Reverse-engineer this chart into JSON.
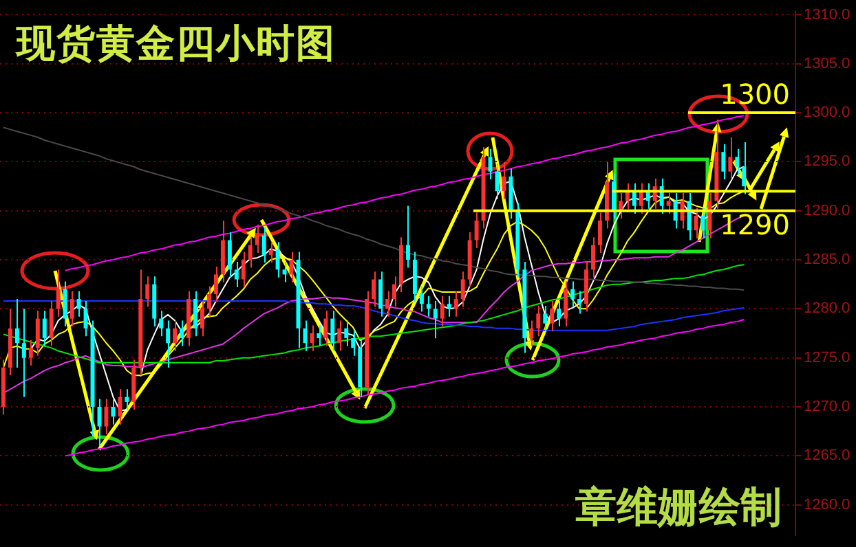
{
  "chart_data": {
    "type": "candlestick",
    "title": "现货黄金四小时图",
    "annotations": [
      "章维姗绘制"
    ],
    "categories": [
      null,
      null,
      null,
      null,
      null,
      null,
      null,
      null,
      null,
      null,
      null,
      null,
      null,
      null,
      null,
      null,
      null,
      null,
      null,
      null,
      null,
      null,
      null,
      null,
      null,
      null,
      null,
      null,
      null,
      null,
      null,
      null,
      null,
      null,
      null,
      null,
      null,
      null,
      null,
      null,
      null,
      null,
      null,
      null,
      null,
      null,
      null,
      null,
      null,
      null,
      null,
      null,
      null,
      null,
      null,
      null,
      null,
      null,
      null,
      null,
      null,
      null,
      null,
      null,
      null,
      null,
      null,
      null,
      null,
      null,
      null,
      null,
      null,
      null,
      null,
      null,
      null,
      null,
      null,
      null,
      null,
      null,
      null,
      null,
      null,
      null,
      null,
      null,
      null,
      null,
      null,
      null,
      null,
      null,
      null,
      null,
      null,
      null,
      null,
      null,
      null,
      null,
      null,
      null,
      null,
      null,
      null,
      null,
      null
    ],
    "ohlc": [
      [
        1270,
        1274.8,
        1269.2,
        1274
      ],
      [
        1274,
        1280,
        1273.2,
        1278
      ],
      [
        1278,
        1281,
        1274,
        1276.5
      ],
      [
        1276.5,
        1280,
        1271,
        1275
      ],
      [
        1275,
        1276.8,
        1274.2,
        1276
      ],
      [
        1276,
        1279.8,
        1275.2,
        1279
      ],
      [
        1279,
        1279.8,
        1276.2,
        1277
      ],
      [
        1277,
        1280.8,
        1276.2,
        1280
      ],
      [
        1280,
        1284,
        1279.2,
        1282
      ],
      [
        1282,
        1282.8,
        1278.2,
        1279
      ],
      [
        1279,
        1281.8,
        1278.2,
        1281
      ],
      [
        1281,
        1281.8,
        1279.2,
        1280
      ],
      [
        1280,
        1280.8,
        1277.2,
        1278
      ],
      [
        1278,
        1278.8,
        1267,
        1270
      ],
      [
        1270,
        1270.8,
        1266,
        1268
      ],
      [
        1268,
        1270.8,
        1267.2,
        1270
      ],
      [
        1270,
        1270.8,
        1268.2,
        1269
      ],
      [
        1269,
        1271.8,
        1268.2,
        1271
      ],
      [
        1271,
        1271.8,
        1269.7,
        1270.5
      ],
      [
        1270.5,
        1274.8,
        1269.7,
        1274
      ],
      [
        1274,
        1284,
        1273.2,
        1281
      ],
      [
        1281,
        1283.3,
        1280.2,
        1282.5
      ],
      [
        1282.5,
        1283.3,
        1278.2,
        1279
      ],
      [
        1279,
        1279.8,
        1277.2,
        1278
      ],
      [
        1278,
        1278.8,
        1274,
        1276.5
      ],
      [
        1276.5,
        1278.8,
        1275.7,
        1278
      ],
      [
        1278,
        1278.8,
        1276.2,
        1277
      ],
      [
        1277,
        1281.8,
        1276.2,
        1281
      ],
      [
        1281,
        1281.8,
        1277.2,
        1278
      ],
      [
        1278,
        1280.8,
        1277.2,
        1280
      ],
      [
        1280,
        1282.3,
        1279.2,
        1281.5
      ],
      [
        1281.5,
        1284.3,
        1280.7,
        1283.5
      ],
      [
        1283.5,
        1289,
        1282.7,
        1287
      ],
      [
        1287,
        1287.8,
        1283.2,
        1284
      ],
      [
        1284,
        1284.8,
        1282.2,
        1283
      ],
      [
        1283,
        1285.8,
        1282.2,
        1285
      ],
      [
        1285,
        1287.3,
        1284.2,
        1286.5
      ],
      [
        1286.5,
        1288.6,
        1285.7,
        1287.5
      ],
      [
        1287.5,
        1288.3,
        1284.7,
        1285.5
      ],
      [
        1285.5,
        1286.8,
        1284.7,
        1286
      ],
      [
        1286,
        1286.8,
        1283.2,
        1284
      ],
      [
        1284,
        1284.8,
        1282.7,
        1283.5
      ],
      [
        1283.5,
        1285.8,
        1282.7,
        1285
      ],
      [
        1285,
        1285.8,
        1276,
        1278
      ],
      [
        1278,
        1278.8,
        1275.7,
        1276.5
      ],
      [
        1276.5,
        1278.3,
        1275.7,
        1277.5
      ],
      [
        1277.5,
        1278.3,
        1276.2,
        1277
      ],
      [
        1277,
        1279.8,
        1276.2,
        1279
      ],
      [
        1279,
        1279.8,
        1275.7,
        1276.5
      ],
      [
        1276.5,
        1278.8,
        1275.7,
        1278
      ],
      [
        1278,
        1278.8,
        1276.2,
        1277
      ],
      [
        1277,
        1277.8,
        1275.2,
        1276
      ],
      [
        1276,
        1276.8,
        1271,
        1272
      ],
      [
        1272,
        1281.8,
        1271.2,
        1281
      ],
      [
        1281,
        1283.8,
        1280.2,
        1283
      ],
      [
        1283,
        1283.8,
        1279.2,
        1280
      ],
      [
        1280,
        1281.8,
        1279.2,
        1281
      ],
      [
        1281,
        1283.3,
        1280.2,
        1282.5
      ],
      [
        1282.5,
        1287.3,
        1281.7,
        1286.5
      ],
      [
        1286.5,
        1290.5,
        1284.2,
        1285
      ],
      [
        1285,
        1285.8,
        1280.7,
        1281.5
      ],
      [
        1281.5,
        1282.3,
        1279.7,
        1280.5
      ],
      [
        1280.5,
        1281.3,
        1279.2,
        1280
      ],
      [
        1280,
        1280.8,
        1277,
        1279
      ],
      [
        1279,
        1281.3,
        1278.2,
        1280.5
      ],
      [
        1280.5,
        1281.3,
        1279.2,
        1280
      ],
      [
        1280,
        1281.8,
        1279.2,
        1281
      ],
      [
        1281,
        1283.8,
        1280.2,
        1283
      ],
      [
        1283,
        1287.8,
        1282.2,
        1287
      ],
      [
        1287,
        1289.8,
        1286.2,
        1289
      ],
      [
        1289,
        1296.5,
        1288.2,
        1295.5
      ],
      [
        1295.5,
        1296.3,
        1293.2,
        1294
      ],
      [
        1294,
        1294.8,
        1291.2,
        1292
      ],
      [
        1292,
        1295,
        1291.2,
        1293.5
      ],
      [
        1293.5,
        1294.3,
        1289.2,
        1290
      ],
      [
        1290,
        1290.8,
        1283.2,
        1284
      ],
      [
        1284,
        1284.8,
        1275.5,
        1277
      ],
      [
        1277,
        1278.8,
        1276.2,
        1278
      ],
      [
        1278,
        1280.3,
        1277.2,
        1279.5
      ],
      [
        1279.5,
        1280.3,
        1277.7,
        1278.5
      ],
      [
        1278.5,
        1280.8,
        1277.7,
        1280
      ],
      [
        1280,
        1280.8,
        1278.2,
        1279
      ],
      [
        1279,
        1282.8,
        1278.2,
        1282
      ],
      [
        1282,
        1282.8,
        1280.2,
        1281
      ],
      [
        1281,
        1281.8,
        1279.5,
        1280.5
      ],
      [
        1280.5,
        1284.8,
        1279.7,
        1284
      ],
      [
        1284,
        1287.3,
        1283.2,
        1286.5
      ],
      [
        1286.5,
        1289.8,
        1285.7,
        1289
      ],
      [
        1289,
        1295,
        1288.2,
        1293
      ],
      [
        1293,
        1293.8,
        1289.2,
        1290
      ],
      [
        1290,
        1291.8,
        1289.2,
        1291
      ],
      [
        1291,
        1292.8,
        1290.2,
        1292
      ],
      [
        1292,
        1292.8,
        1289.7,
        1290.5
      ],
      [
        1290.5,
        1292.8,
        1289.7,
        1292
      ],
      [
        1292,
        1292.8,
        1290.2,
        1291
      ],
      [
        1291,
        1293.3,
        1290.2,
        1292.5
      ],
      [
        1292.5,
        1293.3,
        1289.7,
        1290.5
      ],
      [
        1290.5,
        1291.8,
        1289.7,
        1291
      ],
      [
        1291,
        1291.8,
        1288.2,
        1289
      ],
      [
        1289,
        1291.8,
        1288.2,
        1291
      ],
      [
        1291,
        1291.8,
        1287,
        1288
      ],
      [
        1288,
        1290.3,
        1287.2,
        1289.5
      ],
      [
        1289.5,
        1290.3,
        1287.2,
        1288
      ],
      [
        1288,
        1291.8,
        1287.2,
        1291
      ],
      [
        1291,
        1299.3,
        1290.2,
        1296
      ],
      [
        1296,
        1296.8,
        1293.2,
        1294
      ],
      [
        1294,
        1297.5,
        1293.2,
        1295.5
      ],
      [
        1295.5,
        1296.3,
        1293.7,
        1294.5
      ],
      [
        1294.5,
        1297,
        1291.7,
        1292.5
      ]
    ],
    "colors": [
      "#ff3232",
      "#ff3232",
      "#00ffff",
      "#00ffff",
      "#ff3232",
      "#ff3232",
      "#00ffff",
      "#ff3232",
      "#ff3232",
      "#00ffff",
      "#ff3232",
      "#00ffff",
      "#00ffff",
      "#00ffff",
      "#00ffff",
      "#ff3232",
      "#00ffff",
      "#ff3232",
      "#00ffff",
      "#ff3232",
      "#ff3232",
      "#ff3232",
      "#00ffff",
      "#00ffff",
      "#00ffff",
      "#ff3232",
      "#00ffff",
      "#ff3232",
      "#00ffff",
      "#ff3232",
      "#ff3232",
      "#ff3232",
      "#ff3232",
      "#00ffff",
      "#00ffff",
      "#ff3232",
      "#ff3232",
      "#ff3232",
      "#00ffff",
      "#ff3232",
      "#00ffff",
      "#00ffff",
      "#ff3232",
      "#00ffff",
      "#00ffff",
      "#ff3232",
      "#00ffff",
      "#ff3232",
      "#00ffff",
      "#ff3232",
      "#00ffff",
      "#00ffff",
      "#00ffff",
      "#ff3232",
      "#ff3232",
      "#00ffff",
      "#ff3232",
      "#ff3232",
      "#ff3232",
      "#00ffff",
      "#00ffff",
      "#00ffff",
      "#00ffff",
      "#00ffff",
      "#ff3232",
      "#00ffff",
      "#ff3232",
      "#ff3232",
      "#ff3232",
      "#ff3232",
      "#ff3232",
      "#00ffff",
      "#00ffff",
      "#ff3232",
      "#00ffff",
      "#00ffff",
      "#00ffff",
      "#ff3232",
      "#ff3232",
      "#00ffff",
      "#ff3232",
      "#00ffff",
      "#ff3232",
      "#00ffff",
      "#00ffff",
      "#ff3232",
      "#ff3232",
      "#ff3232",
      "#ff3232",
      "#00ffff",
      "#ff3232",
      "#ff3232",
      "#00ffff",
      "#ff3232",
      "#00ffff",
      "#ff3232",
      "#00ffff",
      "#ff3232",
      "#00ffff",
      "#ff3232",
      "#00ffff",
      "#ff3232",
      "#00ffff",
      "#ff3232",
      "#ff3232",
      "#00ffff",
      "#ff3232",
      "#00ffff",
      "#00ffff"
    ],
    "series": [
      {
        "type": "line",
        "color": "#4a4a4a",
        "values": [
          1298.5,
          1298.3,
          1298.1,
          1297.9,
          1297.7,
          1297.5,
          1297.2,
          1297,
          1296.8,
          1296.6,
          1296.4,
          1296.2,
          1296,
          1295.8,
          1295.6,
          1295.3,
          1295.1,
          1294.9,
          1294.7,
          1294.5,
          1294.2,
          1294,
          1293.8,
          1293.6,
          1293.4,
          1293.2,
          1293,
          1292.8,
          1292.6,
          1292.4,
          1292.2,
          1292,
          1291.8,
          1291.6,
          1291.4,
          1291.2,
          1291,
          1290.8,
          1290.6,
          1290.4,
          1290.2,
          1290,
          1289.7,
          1289.5,
          1289.3,
          1289,
          1288.8,
          1288.5,
          1288.3,
          1288.1,
          1287.8,
          1287.6,
          1287.4,
          1287.1,
          1286.9,
          1286.6,
          1286.4,
          1286.2,
          1285.9,
          1285.7,
          1285.5,
          1285.4,
          1285.2,
          1285.1,
          1284.9,
          1284.8,
          1284.6,
          1284.5,
          1284.4,
          1284.2,
          1284.1,
          1283.9,
          1283.8,
          1283.6,
          1283.5,
          1283.5,
          1283.4,
          1283.4,
          1283.3,
          1283.3,
          1283.2,
          1283.2,
          1283.1,
          1283.1,
          1283,
          1283,
          1283,
          1282.9,
          1282.9,
          1282.8,
          1282.8,
          1282.8,
          1282.7,
          1282.7,
          1282.6,
          1282.6,
          1282.5,
          1282.5,
          1282.4,
          1282.4,
          1282.3,
          1282.3,
          1282.2,
          1282.2,
          1282.1,
          1282.1,
          1282,
          1282,
          1281.9
        ]
      },
      {
        "type": "line",
        "color": "#1e32ff",
        "values": [
          1280.8,
          1280.8,
          1280.8,
          1280.8,
          1280.8,
          1280.8,
          1280.8,
          1280.8,
          1280.8,
          1280.8,
          1280.8,
          1280.8,
          1280.8,
          1280.8,
          1280.8,
          1280.8,
          1280.8,
          1280.8,
          1280.8,
          1280.8,
          1280.8,
          1280.8,
          1280.8,
          1280.8,
          1280.8,
          1280.8,
          1280.8,
          1280.8,
          1280.8,
          1280.8,
          1280.8,
          1280.8,
          1280.8,
          1280.8,
          1280.8,
          1280.8,
          1280.8,
          1280.8,
          1280.8,
          1280.8,
          1280.8,
          1280.8,
          1280.7,
          1280.7,
          1280.6,
          1280.6,
          1280.5,
          1280.5,
          1280.4,
          1280.4,
          1280.3,
          1280.3,
          1280.2,
          1280,
          1279.8,
          1279.6,
          1279.5,
          1279.3,
          1279.1,
          1278.9,
          1278.8,
          1278.6,
          1278.5,
          1278.5,
          1278.4,
          1278.4,
          1278.3,
          1278.3,
          1278.2,
          1278.2,
          1278.1,
          1278.1,
          1278,
          1278,
          1278,
          1277.9,
          1277.9,
          1277.8,
          1277.8,
          1277.8,
          1277.8,
          1277.8,
          1277.8,
          1277.8,
          1277.8,
          1277.8,
          1277.8,
          1277.8,
          1277.8,
          1277.9,
          1278,
          1278.1,
          1278.2,
          1278.4,
          1278.5,
          1278.6,
          1278.7,
          1278.8,
          1278.9,
          1279.1,
          1279.2,
          1279.3,
          1279.4,
          1279.5,
          1279.6,
          1279.8,
          1279.9,
          1280,
          1280.1
        ]
      },
      {
        "type": "line",
        "color": "#00e600",
        "values": [
          1277.4,
          1277.2,
          1277,
          1276.8,
          1276.6,
          1276.4,
          1276.2,
          1276,
          1275.7,
          1275.5,
          1275.3,
          1275.1,
          1274.9,
          1274.7,
          1274.5,
          1274.5,
          1274.5,
          1274.5,
          1274.5,
          1274.5,
          1274.5,
          1274.5,
          1274.5,
          1274.5,
          1274.5,
          1274.5,
          1274.5,
          1274.5,
          1274.5,
          1274.5,
          1274.5,
          1274.7,
          1274.7,
          1274.8,
          1274.9,
          1275,
          1275,
          1275.1,
          1275.2,
          1275.3,
          1275.4,
          1275.5,
          1275.7,
          1275.8,
          1276,
          1276.1,
          1276.2,
          1276.4,
          1276.5,
          1276.7,
          1276.8,
          1276.9,
          1277,
          1277.1,
          1277.2,
          1277.2,
          1277.3,
          1277.4,
          1277.5,
          1277.6,
          1277.7,
          1277.8,
          1277.9,
          1278,
          1278.1,
          1278.2,
          1278.3,
          1278.5,
          1278.6,
          1278.7,
          1278.8,
          1279,
          1279.2,
          1279.4,
          1279.6,
          1279.8,
          1280.1,
          1280.3,
          1280.5,
          1280.7,
          1280.9,
          1281,
          1281.2,
          1281.4,
          1281.6,
          1281.8,
          1282,
          1282.2,
          1282.4,
          1282.5,
          1282.5,
          1282.6,
          1282.7,
          1282.7,
          1282.8,
          1282.9,
          1282.9,
          1283,
          1283.1,
          1283.1,
          1283.2,
          1283.4,
          1283.5,
          1283.7,
          1283.9,
          1284,
          1284.2,
          1284.4,
          1284.5
        ]
      },
      {
        "type": "line",
        "color": "#e632e6",
        "values": [
          1271.4,
          1271.8,
          1272.2,
          1272.6,
          1272.9,
          1273.3,
          1273.7,
          1274,
          1274.2,
          1274.5,
          1274.7,
          1275,
          1275.2,
          1274.9,
          1274.6,
          1274.3,
          1274.2,
          1274.2,
          1274.1,
          1274.1,
          1274,
          1274.2,
          1274.4,
          1274.6,
          1274.8,
          1275,
          1275.2,
          1275.4,
          1275.6,
          1275.8,
          1276,
          1276.2,
          1276.4,
          1276.9,
          1277.4,
          1278,
          1278.5,
          1279,
          1279.5,
          1279.8,
          1280.1,
          1280.5,
          1280.8,
          1280.9,
          1281,
          1281,
          1281.1,
          1281.2,
          1281.1,
          1281.1,
          1281,
          1280.9,
          1280.8,
          1280.7,
          1280.6,
          1280.4,
          1280.3,
          1280.1,
          1280,
          1279.8,
          1279.7,
          1279.4,
          1279.1,
          1278.9,
          1278.6,
          1278.6,
          1278.6,
          1278.6,
          1278.6,
          1278.6,
          1279.4,
          1280.2,
          1280.9,
          1281.7,
          1282.3,
          1282.8,
          1283.4,
          1283.9,
          1284.1,
          1284.3,
          1284.5,
          1284.6,
          1284.6,
          1284.7,
          1284.7,
          1284.8,
          1284.8,
          1284.9,
          1284.9,
          1285,
          1285,
          1285.1,
          1285.2,
          1285.2,
          1285.2,
          1285.3,
          1285.3,
          1285.3,
          1285.7,
          1286,
          1286.4,
          1286.8,
          1287.2,
          1287.6,
          1288,
          1288.4,
          1288.8,
          1289.2,
          1289.5
        ]
      },
      {
        "type": "line",
        "color": "#ffff00",
        "values": [
          1274,
          1276,
          1276.2,
          1275.9,
          1275.9,
          1275.5,
          1276.4,
          1276.8,
          1277.4,
          1277.7,
          1278.4,
          1278.6,
          1278.7,
          1278.2,
          1277.4,
          1276.5,
          1275.7,
          1274.8,
          1273.7,
          1273.2,
          1273.2,
          1273.4,
          1273.5,
          1274.3,
          1275.2,
          1276,
          1276.8,
          1277.8,
          1278.5,
          1279.1,
          1279.2,
          1279.3,
          1280.1,
          1280.7,
          1281.3,
          1282,
          1283,
          1283.6,
          1284.4,
          1285,
          1285.2,
          1285.2,
          1285,
          1284.4,
          1283.8,
          1283,
          1282.1,
          1281.2,
          1280.3,
          1279.5,
          1278.8,
          1278.1,
          1276.8,
          1277.1,
          1277.7,
          1278,
          1278.4,
          1278.7,
          1279.7,
          1280.4,
          1280.9,
          1281.3,
          1282.1,
          1281.9,
          1281.7,
          1281.7,
          1281.7,
          1281.7,
          1281.8,
          1282.2,
          1283.6,
          1284.9,
          1286.1,
          1287.6,
          1288.5,
          1288.9,
          1288.5,
          1288,
          1287.3,
          1286.2,
          1284.7,
          1283.2,
          1282.2,
          1280.9,
          1280,
          1280,
          1280.9,
          1282,
          1283.4,
          1284.5,
          1285.6,
          1286.9,
          1287.8,
          1288.9,
          1289.9,
          1290.8,
          1291.2,
          1291.4,
          1291,
          1291.1,
          1290.8,
          1290.5,
          1290.3,
          1290.2,
          1290.7,
          1290.8,
          1291.3,
          1291.7,
          1292
        ]
      },
      {
        "type": "line",
        "color": "#ffffff",
        "values": [
          null,
          null,
          null,
          null,
          1275.9,
          1276.9,
          1276.7,
          1277.4,
          1278.8,
          1279.4,
          1279.8,
          1280.4,
          1280,
          1277.6,
          1275.4,
          1273.2,
          1271,
          1269.6,
          1269.7,
          null,
          1273.1,
          1275.8,
          1277.4,
          1278.9,
          1279.4,
          1278.8,
          1277.7,
          1278.1,
          1278.1,
          1278.8,
          1279.5,
          1280.8,
          1282,
          1283.2,
          1283.8,
          1284.5,
          1285.1,
          1285.2,
          1285.5,
          1286.1,
          1285.9,
          1285.3,
          1284.8,
          1283.3,
          1281.4,
          1280.1,
          1278.8,
          1277.6,
          1277.3,
          1277.6,
          1277.5,
          1277.3,
          1275.9,
          1276.8,
          1277.8,
          1278.4,
          1279.4,
          1281.5,
          1282.6,
          1283,
          1283.3,
          1283.2,
          1282.7,
          1281.2,
          1280.3,
          1280,
          1280.1,
          1280.7,
          1282.3,
          1284,
          1287.1,
          1289.7,
          1291.5,
          1292.8,
          1293,
          1290.7,
          1287.3,
          1284.5,
          1281.7,
          1279.4,
          1278.6,
          1279,
          1279.8,
          1280.1,
          1280.5,
          1281.3,
          1282.8,
          1284.2,
          1286.6,
          1288.5,
          1289.9,
          1291,
          1291.3,
          1291.1,
          1291.3,
          1291.6,
          1291.3,
          1291.4,
          1290.8,
          1290.8,
          1289.9,
          1289.7,
          1289.1,
          1289.5,
          1290.5,
          1291.7,
          1292.9,
          1294.2,
          1294.5
        ]
      },
      {
        "type": "line",
        "color": "#ff00ff",
        "values": [
          null,
          null,
          null,
          null,
          null,
          null,
          null,
          null,
          null,
          1283.9,
          1284.1,
          1284.2,
          1284.4,
          1284.5,
          1284.7,
          1284.9,
          1285,
          1285.2,
          1285.3,
          1285.5,
          1285.7,
          1285.8,
          1286,
          1286.1,
          1286.3,
          1286.5,
          1286.6,
          1286.8,
          1286.9,
          1287.1,
          1287.3,
          1287.4,
          1287.6,
          1287.7,
          1287.9,
          1288.1,
          1288.2,
          1288.4,
          1288.5,
          1288.7,
          1288.9,
          1289,
          1289.2,
          1289.3,
          1289.5,
          1289.7,
          1289.8,
          1290,
          1290.1,
          1290.3,
          1290.5,
          1290.6,
          1290.8,
          1290.9,
          1291.1,
          1291.3,
          1291.4,
          1291.6,
          1291.7,
          1291.9,
          1292.1,
          1292.2,
          1292.4,
          1292.5,
          1292.7,
          1292.9,
          1293,
          1293.2,
          1293.3,
          1293.5,
          1293.7,
          1293.8,
          1294,
          1294.1,
          1294.3,
          1294.5,
          1294.6,
          1294.8,
          1294.9,
          1295.1,
          1295.3,
          1295.4,
          1295.6,
          1295.7,
          1295.9,
          1296.1,
          1296.2,
          1296.4,
          1296.5,
          1296.7,
          1296.9,
          1297,
          1297.2,
          1297.3,
          1297.5,
          1297.7,
          1297.8,
          1298,
          1298.1,
          1298.3,
          1298.5,
          1298.6,
          1298.8,
          1298.9,
          1299.1,
          1299.3,
          1299.4,
          1299.6,
          1299.7
        ]
      },
      {
        "type": "line",
        "color": "#ff00ff",
        "values": [
          null,
          null,
          null,
          null,
          null,
          null,
          null,
          null,
          null,
          1265,
          1265.1,
          1265.3,
          1265.4,
          1265.6,
          1265.7,
          1265.8,
          1266,
          1266.1,
          1266.3,
          1266.4,
          1266.5,
          1266.7,
          1266.8,
          1267,
          1267.1,
          1267.2,
          1267.4,
          1267.5,
          1267.7,
          1267.8,
          1267.9,
          1268.1,
          1268.2,
          1268.4,
          1268.5,
          1268.6,
          1268.8,
          1268.9,
          1269.1,
          1269.2,
          1269.3,
          1269.5,
          1269.6,
          1269.8,
          1269.9,
          1270,
          1270.2,
          1270.3,
          1270.5,
          1270.6,
          1270.7,
          1270.9,
          1271,
          1271.2,
          1271.3,
          1271.4,
          1271.6,
          1271.7,
          1271.9,
          1272,
          1272.1,
          1272.3,
          1272.4,
          1272.6,
          1272.7,
          1272.8,
          1273,
          1273.1,
          1273.3,
          1273.4,
          1273.5,
          1273.7,
          1273.8,
          1274,
          1274.1,
          1274.2,
          1274.4,
          1274.5,
          1274.7,
          1274.8,
          1274.9,
          1275.1,
          1275.2,
          1275.4,
          1275.5,
          1275.6,
          1275.8,
          1275.9,
          1276.1,
          1276.2,
          1276.3,
          1276.5,
          1276.6,
          1276.8,
          1276.9,
          1277,
          1277.2,
          1277.3,
          1277.5,
          1277.6,
          1277.7,
          1277.9,
          1278,
          1278.2,
          1278.3,
          1278.4,
          1278.6,
          1278.7,
          1278.9
        ]
      }
    ],
    "ylim": [
      1256.9,
      1310.3
    ],
    "yticks": [
      {
        "value": 1260,
        "label": "1260.0"
      },
      {
        "value": 1265,
        "label": "1265.0"
      },
      {
        "value": 1270,
        "label": "1270.0"
      },
      {
        "value": 1275,
        "label": "1275.0"
      },
      {
        "value": 1280,
        "label": "1280.0"
      },
      {
        "value": 1285,
        "label": "1285.0"
      },
      {
        "value": 1290,
        "label": "1290.0"
      },
      {
        "value": 1295,
        "label": "1295.0"
      },
      {
        "value": 1300,
        "label": "1300.0"
      },
      {
        "value": 1305,
        "label": "1305.0"
      },
      {
        "value": 1310,
        "label": "1310.0"
      }
    ],
    "ref_lines": [
      {
        "axis": "y",
        "value": 1300,
        "label": "1300",
        "color": "#ffff00"
      },
      {
        "axis": "y",
        "value": 1292,
        "color": "#ffff00"
      },
      {
        "axis": "y",
        "value": 1290,
        "label": "1290",
        "color": "#ffff00"
      }
    ],
    "grid": "y",
    "tick_labels": "y",
    "legend": false
  }
}
